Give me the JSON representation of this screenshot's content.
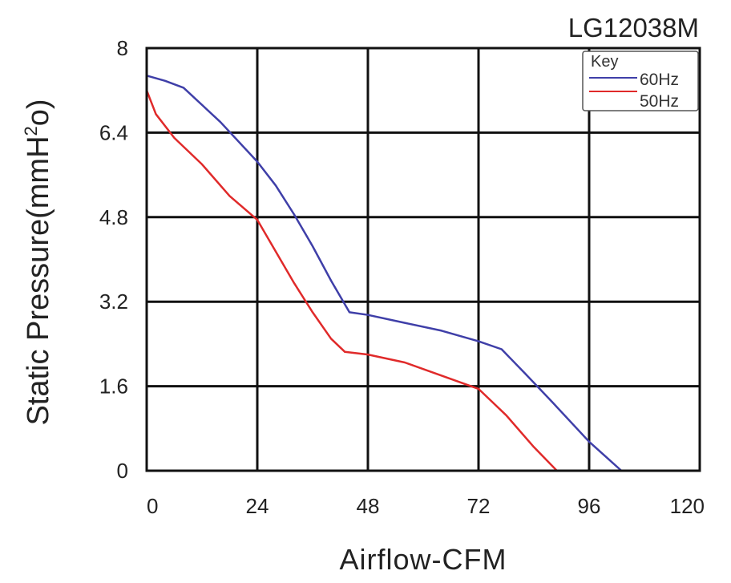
{
  "chart_data": {
    "type": "line",
    "title": "LG12038M",
    "xlabel": "Airflow-CFM",
    "ylabel_main": "Static Pressure(mmH",
    "ylabel_sup": "2",
    "ylabel_tail": "o)",
    "xlim": [
      0,
      120
    ],
    "ylim": [
      0,
      8
    ],
    "xticks": [
      "0",
      "24",
      "48",
      "72",
      "96",
      "120"
    ],
    "yticks": [
      "0",
      "1.6",
      "3.2",
      "4.8",
      "6.4",
      "8"
    ],
    "xtick_values": [
      0,
      24,
      48,
      72,
      96,
      120
    ],
    "ytick_values": [
      0,
      1.6,
      3.2,
      4.8,
      6.4,
      8
    ],
    "grid": true,
    "legend": {
      "title": "Key",
      "placement": "top-right"
    },
    "series": [
      {
        "name": "60Hz",
        "color": "#3f3fa8",
        "x": [
          0,
          4,
          8,
          16,
          24,
          28,
          32,
          36,
          40,
          44,
          48,
          56,
          64,
          72,
          77,
          82,
          88,
          96,
          103
        ],
        "y": [
          7.48,
          7.38,
          7.25,
          6.6,
          5.85,
          5.4,
          4.85,
          4.25,
          3.6,
          3.0,
          2.95,
          2.8,
          2.65,
          2.45,
          2.3,
          1.85,
          1.3,
          0.55,
          0.0
        ]
      },
      {
        "name": "50Hz",
        "color": "#e02a2a",
        "x": [
          0,
          2,
          6,
          12,
          18,
          24,
          28,
          32,
          36,
          40,
          43,
          48,
          56,
          64,
          72,
          78,
          84,
          89
        ],
        "y": [
          7.2,
          6.75,
          6.3,
          5.8,
          5.2,
          4.75,
          4.15,
          3.55,
          3.0,
          2.5,
          2.25,
          2.2,
          2.05,
          1.8,
          1.55,
          1.05,
          0.45,
          0.0
        ]
      }
    ]
  }
}
